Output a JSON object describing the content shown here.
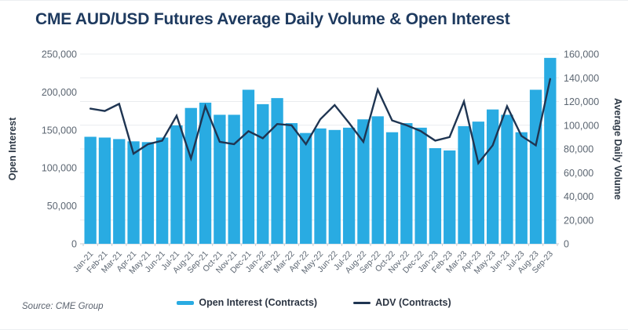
{
  "header": {
    "title": "CME AUD/USD Futures Average Daily Volume & Open Interest"
  },
  "source_note": "Source: CME Group",
  "legend": [
    {
      "label": "Open Interest (Contracts)",
      "color": "#29ABE2",
      "style": "bar-dash"
    },
    {
      "label": "ADV (Contracts)",
      "color": "#1F3552",
      "style": "line-dash"
    }
  ],
  "colors": {
    "title": "#1e3a5f",
    "bar": "#29ABE2",
    "line": "#1F3552",
    "gridline": "#e9ecef",
    "axis_line": "#c6ccd4",
    "tick_label": "#5c6672",
    "axis_title": "#2f3a47"
  },
  "chart_data": {
    "type": "bar",
    "subtype": "combo bar+line, dual axis",
    "title": "CME AUD/USD Futures Average Daily Volume & Open Interest",
    "categories": [
      "Jan-21",
      "Feb-21",
      "Mar-21",
      "Apr-21",
      "May-21",
      "Jun-21",
      "Jul-21",
      "Aug-21",
      "Sep-21",
      "Oct-21",
      "Nov-21",
      "Dec-21",
      "Jan-22",
      "Feb-22",
      "Mar-22",
      "Apr-22",
      "May-22",
      "Jun-22",
      "Jul-22",
      "Aug-22",
      "Sep-22",
      "Oct-22",
      "Nov-22",
      "Dec-22",
      "Jan-23",
      "Feb-23",
      "Mar-23",
      "Apr-23",
      "May-23",
      "Jun-23",
      "Jul-23",
      "Aug-23",
      "Sep-23"
    ],
    "series": [
      {
        "name": "Open Interest (Contracts)",
        "type": "bar",
        "axis": "left",
        "color": "#29ABE2",
        "values": [
          141000,
          140000,
          138000,
          135000,
          134000,
          140000,
          156000,
          179000,
          186000,
          170000,
          170000,
          203000,
          184000,
          192000,
          159000,
          146000,
          152000,
          150000,
          153000,
          164000,
          168000,
          147000,
          159000,
          153000,
          126000,
          123000,
          155000,
          161000,
          177000,
          170000,
          147000,
          203000,
          245000
        ]
      },
      {
        "name": "ADV (Contracts)",
        "type": "line",
        "axis": "right",
        "color": "#1F3552",
        "values": [
          114000,
          112000,
          118000,
          76000,
          84000,
          87000,
          108000,
          72000,
          116000,
          86000,
          84000,
          95000,
          89000,
          101000,
          100000,
          84000,
          105000,
          117000,
          102000,
          86000,
          130000,
          104000,
          100000,
          95000,
          87000,
          90000,
          120000,
          68000,
          83000,
          116000,
          91000,
          83000,
          139000
        ]
      }
    ],
    "left_axis": {
      "label": "Open Interest",
      "min": 0,
      "max": 250000,
      "tick_step": 50000,
      "tick_labels": [
        "0",
        "50,000",
        "100,000",
        "150,000",
        "200,000",
        "250,000"
      ]
    },
    "right_axis": {
      "label": "Average Daily Volume",
      "min": 0,
      "max": 160000,
      "tick_step": 20000,
      "tick_labels": [
        "0",
        "20,000",
        "40,000",
        "60,000",
        "80,000",
        "100,000",
        "120,000",
        "140,000",
        "160,000"
      ]
    },
    "grid": "horizontal gridlines at right-axis steps of 20,000",
    "legend_position": "bottom-center",
    "x_tick_rotation": -48
  }
}
